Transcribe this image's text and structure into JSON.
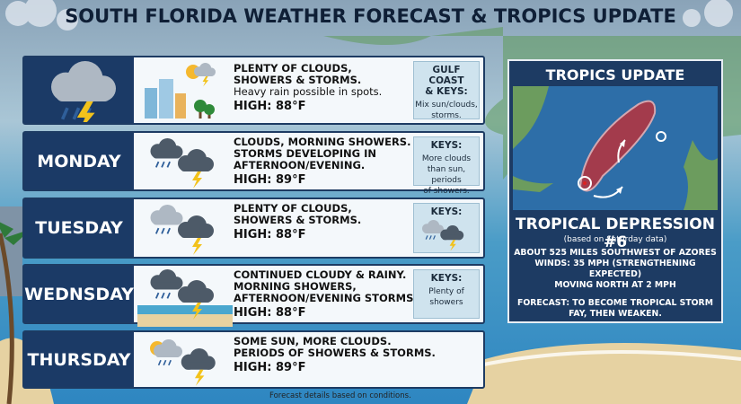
{
  "header": {
    "title": "SOUTH FLORIDA WEATHER FORECAST & TROPICS UPDATE"
  },
  "days": [
    {
      "lines": [
        "PLENTY OF CLOUDS,",
        "SHOWERS & STORMS."
      ],
      "note": "Heavy rain possible in spots.",
      "high": "HIGH: 88°F",
      "keys": {
        "title": [
          "GULF COAST",
          "& KEYS:"
        ],
        "text": [
          "Mix sun/clouds,",
          "storms."
        ]
      }
    },
    {
      "day": "MONDAY",
      "lines": [
        "CLOUDS, MORNING SHOWERS.",
        "STORMS DEVELOPING IN",
        "AFTERNOON/EVENING."
      ],
      "high": "HIGH: 89°F",
      "keys": {
        "title": [
          "KEYS:"
        ],
        "text": [
          "More clouds",
          "than sun, periods",
          "of showers."
        ]
      }
    },
    {
      "day": "TUESDAY",
      "lines": [
        "PLENTY OF CLOUDS,",
        "SHOWERS & STORMS."
      ],
      "high": "HIGH: 88°F",
      "keys": {
        "title": [
          "KEYS:"
        ]
      }
    },
    {
      "day": "WEDNSDAY",
      "lines": [
        "CONTINUED CLOUDY & RAINY.",
        "MORNING SHOWERS,",
        "AFTERNOON/EVENING STORMS."
      ],
      "high": "HIGH: 88°F",
      "keys": {
        "title": [
          "KEYS:"
        ],
        "text": [
          "Plenty of",
          "showers"
        ]
      }
    },
    {
      "day": "THURSDAY",
      "lines": [
        "SOME SUN, MORE CLOUDS.",
        "PERIODS OF SHOWERS & STORMS."
      ],
      "high": "HIGH: 89°F"
    }
  ],
  "tropics": {
    "title": "TROPICS UPDATE",
    "storm": "TROPICAL DEPRESSION #6",
    "subtitle": "(based on Saturday data)",
    "details": [
      "ABOUT 525 MILES SOUTHWEST OF AZORES",
      "WINDS: 35 MPH (STRENGTHENING EXPECTED)",
      "MOVING NORTH AT 2 MPH"
    ],
    "forecast": [
      "FORECAST: TO BECOME TROPICAL STORM",
      "FAY, THEN WEAKEN."
    ]
  },
  "footer": {
    "note": "Forecast details based on conditions."
  }
}
